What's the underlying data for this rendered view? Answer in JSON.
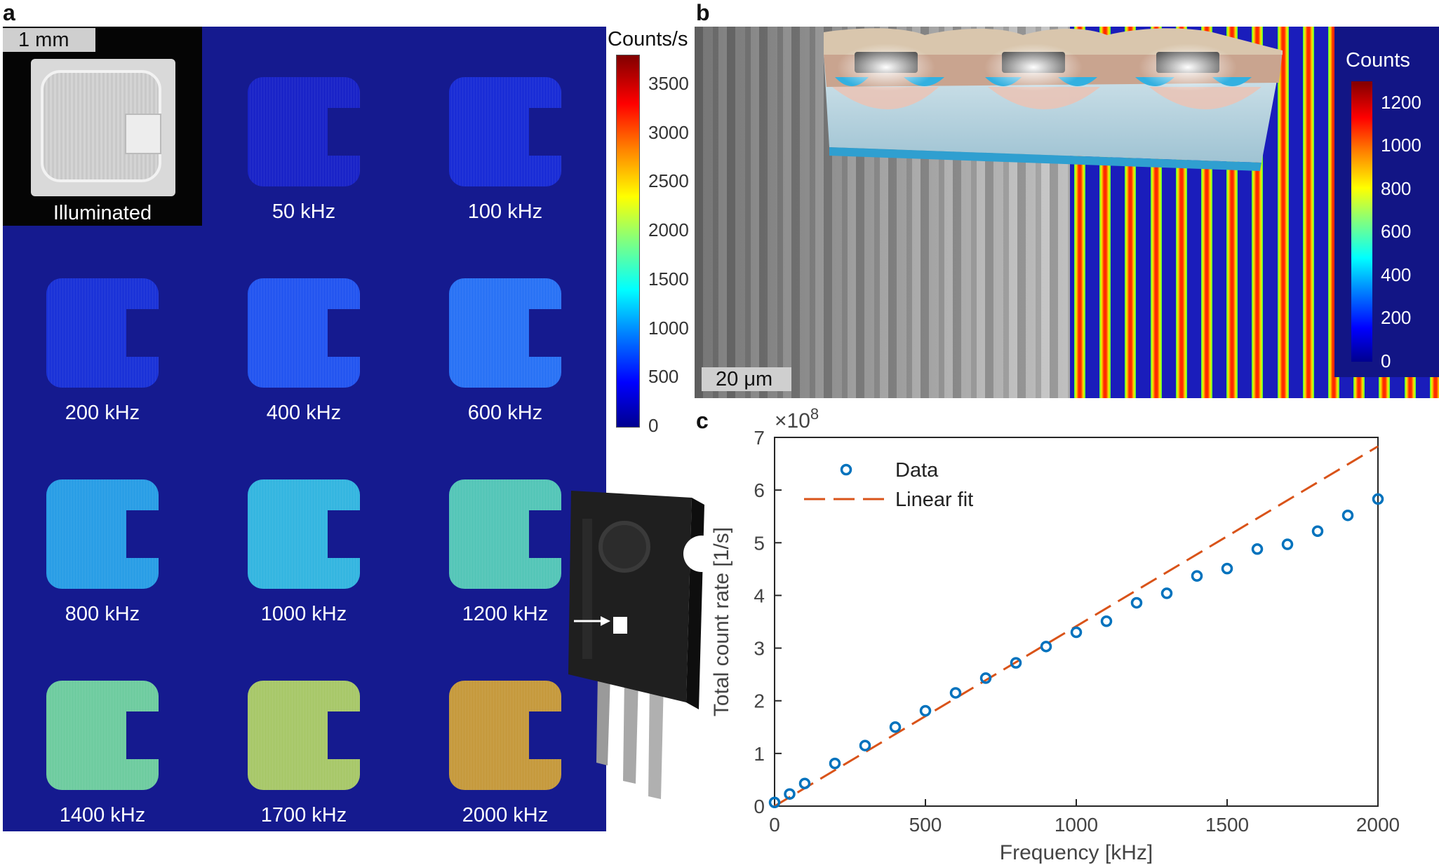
{
  "panel_letters": {
    "a": "a",
    "b": "b",
    "c": "c"
  },
  "panel_a": {
    "scale_bar": "1 mm",
    "illuminated_label": "Illuminated",
    "tile_labels": [
      "50 kHz",
      "100 kHz",
      "200 kHz",
      "400 kHz",
      "600 kHz",
      "800 kHz",
      "1000 kHz",
      "1200 kHz",
      "1400 kHz",
      "1700 kHz",
      "2000 kHz"
    ],
    "tile_colors": [
      "#1a24c8",
      "#1a2dd6",
      "#1b33d8",
      "#2456f0",
      "#2a73f5",
      "#2a9ee6",
      "#35b6e0",
      "#55c6b8",
      "#6fcca0",
      "#a8c86a",
      "#c69a3e"
    ],
    "colorbar": {
      "title": "Counts/s",
      "ticks": [
        "0",
        "500",
        "1000",
        "1500",
        "2000",
        "2500",
        "3000",
        "3500"
      ]
    }
  },
  "panel_b": {
    "scale_bar": "20 μm",
    "colorbar": {
      "title": "Counts",
      "ticks": [
        "0",
        "200",
        "400",
        "600",
        "800",
        "1000",
        "1200"
      ]
    }
  },
  "chart_data": {
    "type": "scatter",
    "title": "",
    "xlabel": "Frequency [kHz]",
    "ylabel": "Total count rate [1/s]",
    "y_exponent_label": "×10",
    "y_exponent": "8",
    "xlim": [
      0,
      2000
    ],
    "ylim": [
      0,
      7
    ],
    "xticks": [
      "0",
      "500",
      "1000",
      "1500",
      "2000"
    ],
    "yticks": [
      "0",
      "1",
      "2",
      "3",
      "4",
      "5",
      "6",
      "7"
    ],
    "legend_position": "top-left",
    "series": [
      {
        "name": "Data",
        "style": "circle markers",
        "color": "#0072bd",
        "x": [
          0,
          50,
          100,
          200,
          300,
          400,
          500,
          600,
          700,
          800,
          900,
          1000,
          1100,
          1200,
          1300,
          1400,
          1500,
          1600,
          1700,
          1800,
          1900,
          2000
        ],
        "y": [
          0.07,
          0.23,
          0.43,
          0.81,
          1.15,
          1.5,
          1.81,
          2.15,
          2.43,
          2.72,
          3.03,
          3.3,
          3.51,
          3.86,
          4.04,
          4.37,
          4.51,
          4.88,
          4.97,
          5.22,
          5.52,
          5.83
        ]
      },
      {
        "name": "Linear fit",
        "style": "dashed line",
        "color": "#d95319",
        "x": [
          0,
          2000
        ],
        "y": [
          0.0,
          6.83
        ]
      }
    ]
  }
}
